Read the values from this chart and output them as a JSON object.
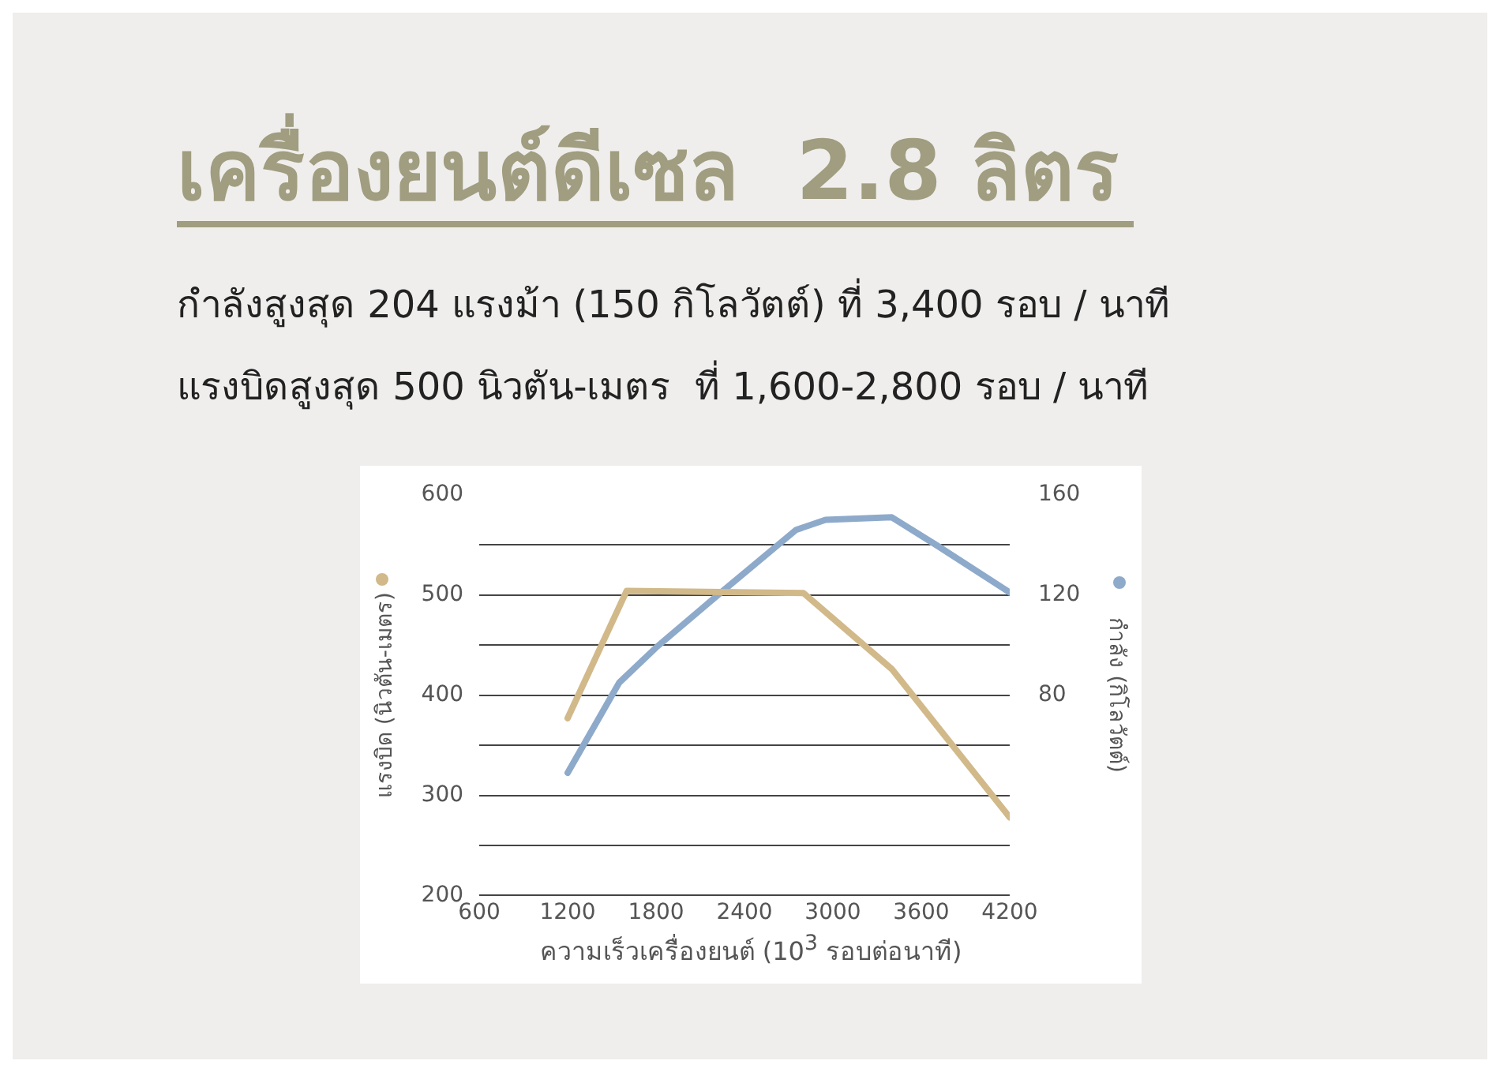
{
  "chart_data": {
    "type": "line",
    "title": "เครื่องยนต์ดีเซล  2.8 ลิตร",
    "subtitle": "กำลังสูงสุด 204 แรงม้า (150 กิโลวัตต์) ที่ 3,400 รอบ / นาที\nแรงบิดสูงสุด 500 นิวตัน-เมตร  ที่ 1,600-2,800 รอบ / นาที",
    "xlabel": "ความเร็วเครื่องยนต์ (10$^{3}$ รอบต่อนาที)",
    "ylabel": "แรงบิด (นิวตัน-เมตร)",
    "y2label": "กำลัง (กิโลวัตต์)",
    "series": [
      {
        "color": "#d2b98a",
        "x": [
          1200,
          1600,
          2800,
          3400,
          4200
        ],
        "values": [
          377,
          504,
          502,
          426,
          278
        ]
      },
      {
        "color": "#8eaacb",
        "axis": "y2",
        "x": [
          1200,
          1550,
          1800,
          2200,
          2750,
          2950,
          3400,
          3700,
          4200
        ],
        "values": [
          49,
          85,
          99,
          119,
          146,
          150,
          151,
          140,
          121
        ]
      }
    ],
    "xlim": [
      600,
      4200
    ],
    "xticks": [
      600,
      1200,
      1800,
      2400,
      3000,
      3600,
      4200
    ],
    "ylim": [
      200,
      600
    ],
    "yticks": [
      200,
      {
        "value": 250,
        "label": null
      },
      300,
      {
        "value": 350,
        "label": null
      },
      400,
      {
        "value": 450,
        "label": null
      },
      500,
      {
        "value": 550,
        "label": null
      },
      600
    ],
    "y2lim": [
      0,
      160
    ],
    "y2ticks": [
      80,
      120,
      160
    ],
    "grid": "y",
    "legend": false,
    "marker": "none",
    "line_style": "solid"
  }
}
